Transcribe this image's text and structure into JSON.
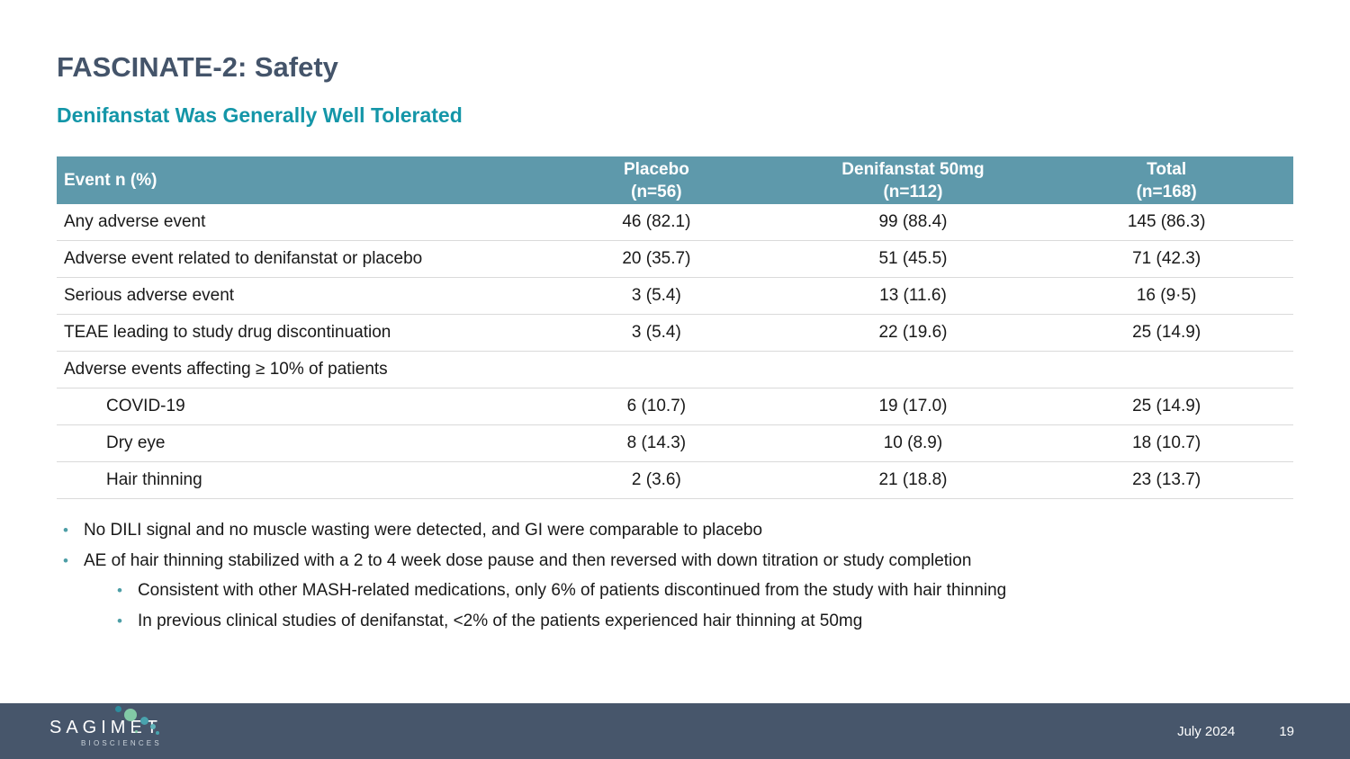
{
  "slide": {
    "title": "FASCINATE-2: Safety",
    "subtitle": "Denifanstat Was Generally Well Tolerated"
  },
  "table": {
    "header": {
      "event": "Event n (%)",
      "columns": [
        {
          "line1": "Placebo",
          "line2": "(n=56)"
        },
        {
          "line1": "Denifanstat 50mg",
          "line2": "(n=112)"
        },
        {
          "line1": "Total",
          "line2": "(n=168)"
        }
      ]
    },
    "rows": [
      {
        "label": "Any adverse event",
        "indent": false,
        "placebo": "46 (82.1)",
        "denifanstat": "99 (88.4)",
        "total": "145 (86.3)"
      },
      {
        "label": "Adverse event related to denifanstat or placebo",
        "indent": false,
        "placebo": "20 (35.7)",
        "denifanstat": "51 (45.5)",
        "total": "71 (42.3)"
      },
      {
        "label": "Serious adverse event",
        "indent": false,
        "placebo": "3 (5.4)",
        "denifanstat": "13 (11.6)",
        "total": "16 (9·5)"
      },
      {
        "label": "TEAE leading to study drug discontinuation",
        "indent": false,
        "placebo": "3 (5.4)",
        "denifanstat": "22 (19.6)",
        "total": "25 (14.9)"
      },
      {
        "label": "Adverse events affecting ≥ 10% of patients",
        "indent": false,
        "placebo": "",
        "denifanstat": "",
        "total": ""
      },
      {
        "label": "COVID-19",
        "indent": true,
        "placebo": "6 (10.7)",
        "denifanstat": "19 (17.0)",
        "total": "25 (14.9)"
      },
      {
        "label": "Dry eye",
        "indent": true,
        "placebo": "8 (14.3)",
        "denifanstat": "10 (8.9)",
        "total": "18 (10.7)"
      },
      {
        "label": "Hair thinning",
        "indent": true,
        "placebo": "2 (3.6)",
        "denifanstat": "21 (18.8)",
        "total": "23 (13.7)"
      }
    ]
  },
  "bullets": [
    {
      "level": 1,
      "text": "No DILI signal and no muscle wasting were detected, and GI were comparable to placebo"
    },
    {
      "level": 1,
      "text": "AE of hair thinning stabilized with a 2 to 4 week dose pause and then reversed with down titration or study completion"
    },
    {
      "level": 2,
      "text": "Consistent with other MASH-related medications, only 6% of patients discontinued from the study with hair thinning"
    },
    {
      "level": 2,
      "text": "In previous clinical studies of denifanstat, <2% of the patients experienced hair thinning at 50mg"
    }
  ],
  "footer": {
    "logo_name": "SAGIMET",
    "logo_sub": "BIOSCIENCES",
    "date": "July 2024",
    "page": "19"
  },
  "colors": {
    "title": "#44546A",
    "subtitle": "#1496A8",
    "table_header_bg": "#5E99AB",
    "bullet_dot": "#4D9EA6",
    "footer_bg": "#47566B"
  }
}
